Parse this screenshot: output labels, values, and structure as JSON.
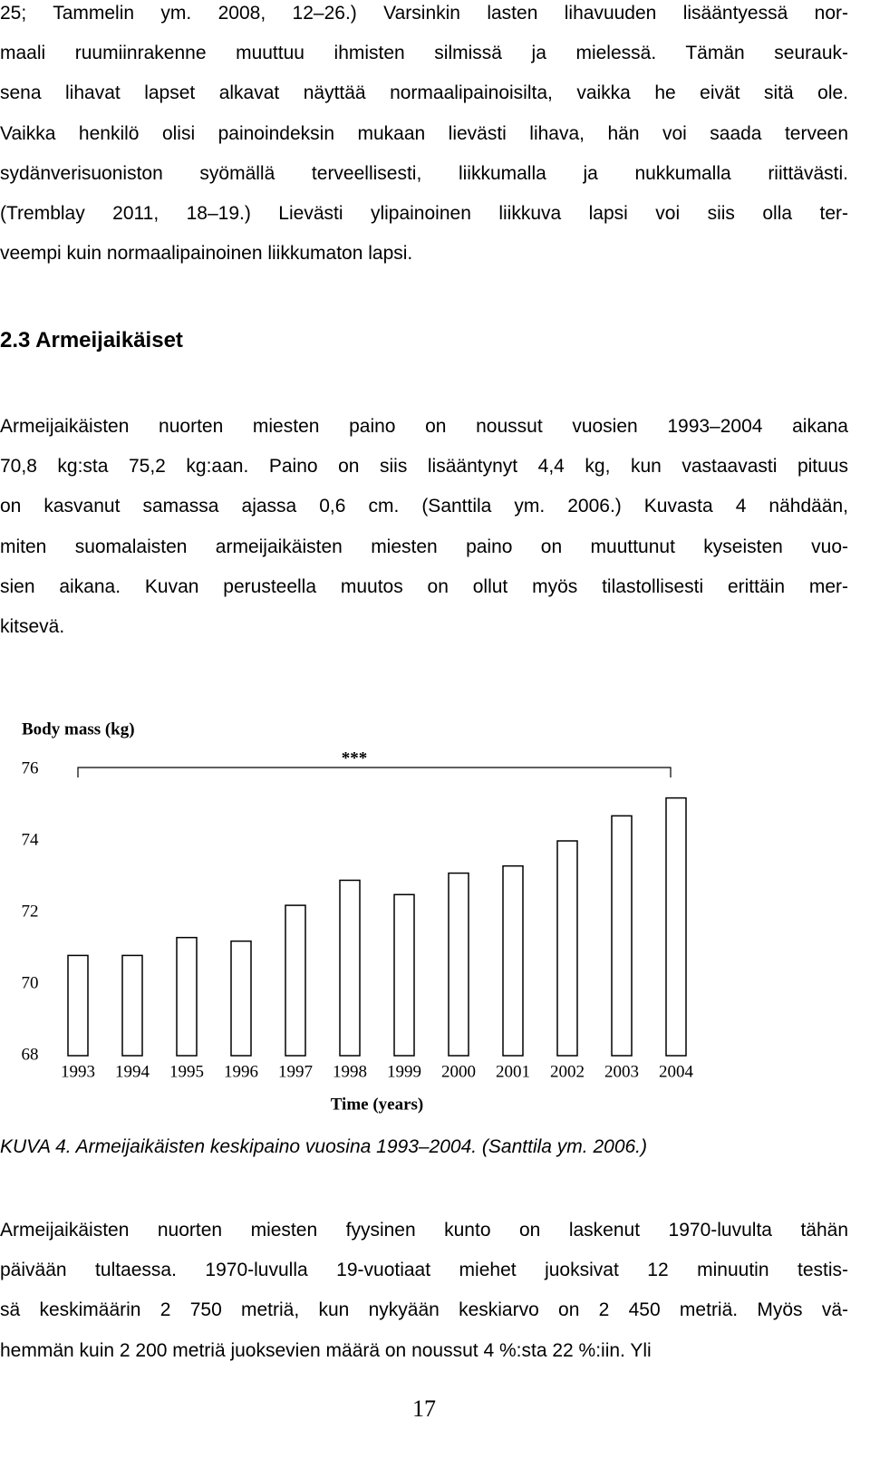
{
  "paragraphs": [
    {
      "lines": [
        "25; Tammelin ym. 2008, 12–26.) Varsinkin lasten lihavuuden lisääntyessä nor-",
        "maali ruumiinrakenne muuttuu ihmisten silmissä ja mielessä. Tämän seurauk-",
        "sena lihavat lapset alkavat näyttää normaalipainoisilta, vaikka he eivät sitä ole.",
        "Vaikka henkilö olisi painoindeksin mukaan lievästi lihava, hän voi saada terveen",
        "sydänverisuoniston syömällä terveellisesti, liikkumalla ja nukkumalla riittävästi.",
        "(Tremblay 2011, 18–19.) Lievästi ylipainoinen liikkuva lapsi voi siis olla ter-",
        "veempi kuin normaalipainoinen liikkumaton lapsi."
      ]
    },
    {
      "lines": [
        "Armeijaikäisten nuorten miesten paino on noussut vuosien 1993–2004 aikana",
        "70,8 kg:sta 75,2 kg:aan. Paino on siis lisääntynyt 4,4 kg, kun vastaavasti pituus",
        "on kasvanut samassa ajassa 0,6 cm. (Santtila ym. 2006.) Kuvasta 4 nähdään,",
        "miten suomalaisten armeijaikäisten miesten paino on muuttunut kyseisten vuo-",
        "sien aikana. Kuvan perusteella muutos on ollut myös tilastollisesti erittäin mer-",
        "kitsevä."
      ]
    },
    {
      "lines": [
        "Armeijaikäisten nuorten miesten fyysinen kunto on laskenut 1970-luvulta tähän",
        "päivään tultaessa. 1970-luvulla 19-vuotiaat miehet juoksivat 12 minuutin testis-",
        "sä keskimäärin 2 750 metriä, kun nykyään keskiarvo on 2 450 metriä. Myös vä-",
        "hemmän kuin 2 200 metriä juoksevien määrä on noussut 4 %:sta 22 %:iin. Yli"
      ]
    }
  ],
  "heading": "2.3 Armeijaikäiset",
  "chart_data": {
    "type": "bar",
    "y_label": "Body mass (kg)",
    "x_label": "Time (years)",
    "annotation": "***",
    "categories": [
      "1993",
      "1994",
      "1995",
      "1996",
      "1997",
      "1998",
      "1999",
      "2000",
      "2001",
      "2002",
      "2003",
      "2004"
    ],
    "values": [
      70.8,
      70.8,
      71.3,
      71.2,
      72.2,
      72.9,
      72.5,
      73.1,
      73.3,
      74.0,
      74.7,
      75.2
    ],
    "color": "#ffffff",
    "edgecolor": "#000000",
    "ylim": [
      68,
      76
    ],
    "yticks": [
      68,
      70,
      72,
      74,
      76
    ],
    "grid": false
  },
  "caption": "KUVA 4. Armeijaikäisten keskipaino vuosina 1993–2004. (Santtila ym. 2006.)",
  "page_number": "17"
}
